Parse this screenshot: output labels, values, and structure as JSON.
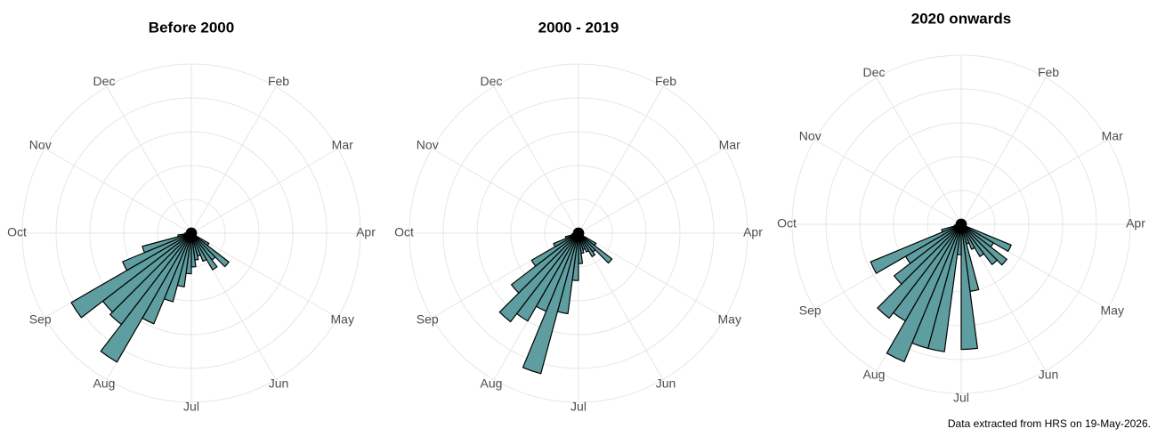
{
  "chart_data": [
    {
      "type": "polar_histogram",
      "title": "Before 2000",
      "color": "#5f9ea0",
      "grid": true,
      "bins": [
        0,
        0.25,
        0.5,
        0.75,
        1,
        1.25,
        1.5,
        1.75,
        2,
        2.25,
        2.5,
        2.75,
        3,
        3.25,
        3.5,
        3.75,
        4,
        4.25,
        4.5,
        4.75,
        5,
        5.25,
        5.5,
        5.75,
        6,
        6.25,
        6.5,
        6.75,
        7,
        7.25,
        7.5,
        7.75,
        8,
        8.25,
        8.5,
        8.75,
        9,
        9.25,
        9.5,
        9.75,
        10,
        10.25,
        10.5,
        10.75,
        11,
        11.25,
        11.5,
        11.75,
        12
      ],
      "values": [
        0.15,
        0.15,
        0.15,
        0.15,
        0.15,
        0.15,
        0.15,
        0.15,
        0.15,
        0.15,
        0.15,
        0.15,
        0.15,
        0.15,
        0.15,
        0.15,
        0.6,
        1.4,
        1.0,
        1.25,
        0.9,
        0.7,
        0.8,
        1.0,
        1.2,
        1.6,
        2.1,
        2.9,
        4.4,
        3.4,
        3.3,
        4.1,
        2.2,
        1.5,
        0.4,
        0.2,
        0.15,
        0.15,
        0.15,
        0.15,
        0.15,
        0.15,
        0.15,
        0.15,
        0.15,
        0.15,
        0.15,
        0.15
      ],
      "xlim": [
        0,
        12
      ],
      "xticks": [
        {
          "value": 1,
          "label": "Feb"
        },
        {
          "value": 2,
          "label": "Mar"
        },
        {
          "value": 3,
          "label": "Apr"
        },
        {
          "value": 4,
          "label": "May"
        },
        {
          "value": 5,
          "label": "Jun"
        },
        {
          "value": 6,
          "label": "Jul"
        },
        {
          "value": 7,
          "label": "Aug"
        },
        {
          "value": 8,
          "label": "Sep"
        },
        {
          "value": 9,
          "label": "Oct"
        },
        {
          "value": 10,
          "label": "Nov"
        },
        {
          "value": 11,
          "label": "Dec"
        }
      ],
      "ylim": [
        0,
        5
      ],
      "yticks": [
        1,
        2,
        3,
        4,
        5
      ]
    },
    {
      "type": "polar_histogram",
      "title": "2000 - 2019",
      "color": "#5f9ea0",
      "grid": true,
      "bins": [
        0,
        0.25,
        0.5,
        0.75,
        1,
        1.25,
        1.5,
        1.75,
        2,
        2.25,
        2.5,
        2.75,
        3,
        3.25,
        3.5,
        3.75,
        4,
        4.25,
        4.5,
        4.75,
        5,
        5.25,
        5.5,
        5.75,
        6,
        6.25,
        6.5,
        6.75,
        7,
        7.25,
        7.5,
        7.75,
        8,
        8.25,
        8.5,
        8.75,
        9,
        9.25,
        9.5,
        9.75,
        10,
        10.25,
        10.5,
        10.75,
        11,
        11.25,
        11.5,
        11.75,
        12
      ],
      "values": [
        0.15,
        0.15,
        0.15,
        0.15,
        0.15,
        0.15,
        0.15,
        0.15,
        0.15,
        0.15,
        0.15,
        0.15,
        0.15,
        0.15,
        0.15,
        0.15,
        0.6,
        1.25,
        0.7,
        0.8,
        0.6,
        0.5,
        0.6,
        0.9,
        1.4,
        2.4,
        4.3,
        2.5,
        3.0,
        3.3,
        2.5,
        1.6,
        0.8,
        0.4,
        0.2,
        0.15,
        0.15,
        0.15,
        0.15,
        0.15,
        0.15,
        0.15,
        0.15,
        0.15,
        0.15,
        0.15,
        0.15,
        0.15
      ],
      "xlim": [
        0,
        12
      ],
      "xticks": [
        {
          "value": 1,
          "label": "Feb"
        },
        {
          "value": 2,
          "label": "Mar"
        },
        {
          "value": 3,
          "label": "Apr"
        },
        {
          "value": 4,
          "label": "May"
        },
        {
          "value": 5,
          "label": "Jun"
        },
        {
          "value": 6,
          "label": "Jul"
        },
        {
          "value": 7,
          "label": "Aug"
        },
        {
          "value": 8,
          "label": "Sep"
        },
        {
          "value": 9,
          "label": "Oct"
        },
        {
          "value": 10,
          "label": "Nov"
        },
        {
          "value": 11,
          "label": "Dec"
        }
      ],
      "ylim": [
        0,
        5
      ],
      "yticks": [
        1,
        2,
        3,
        4,
        5
      ]
    },
    {
      "type": "polar_histogram",
      "title": "2020 onwards",
      "color": "#5f9ea0",
      "grid": true,
      "bins": [
        0,
        0.25,
        0.5,
        0.75,
        1,
        1.25,
        1.5,
        1.75,
        2,
        2.25,
        2.5,
        2.75,
        3,
        3.25,
        3.5,
        3.75,
        4,
        4.25,
        4.5,
        4.75,
        5,
        5.25,
        5.5,
        5.75,
        6,
        6.25,
        6.5,
        6.75,
        7,
        7.25,
        7.5,
        7.75,
        8,
        8.25,
        8.5,
        8.75,
        9,
        9.25,
        9.5,
        9.75,
        10,
        10.25,
        10.5,
        10.75,
        11,
        11.25,
        11.5,
        11.75,
        12
      ],
      "values": [
        0.15,
        0.15,
        0.15,
        0.15,
        0.15,
        0.15,
        0.15,
        0.15,
        0.15,
        0.15,
        0.15,
        0.15,
        0.15,
        0.15,
        0.15,
        1.6,
        1.1,
        1.7,
        1.5,
        1.1,
        0.8,
        0.6,
        2.0,
        3.7,
        0.9,
        3.8,
        3.8,
        4.4,
        3.3,
        3.5,
        2.5,
        1.9,
        2.9,
        0.6,
        0.2,
        0.15,
        0.15,
        0.15,
        0.15,
        0.15,
        0.15,
        0.15,
        0.15,
        0.15,
        0.15,
        0.15,
        0.15,
        0.15
      ],
      "xlim": [
        0,
        12
      ],
      "xticks": [
        {
          "value": 1,
          "label": "Feb"
        },
        {
          "value": 2,
          "label": "Mar"
        },
        {
          "value": 3,
          "label": "Apr"
        },
        {
          "value": 4,
          "label": "May"
        },
        {
          "value": 5,
          "label": "Jun"
        },
        {
          "value": 6,
          "label": "Jul"
        },
        {
          "value": 7,
          "label": "Aug"
        },
        {
          "value": 8,
          "label": "Sep"
        },
        {
          "value": 9,
          "label": "Oct"
        },
        {
          "value": 10,
          "label": "Nov"
        },
        {
          "value": 11,
          "label": "Dec"
        }
      ],
      "ylim": [
        0,
        5
      ],
      "yticks": [
        1,
        2,
        3,
        4,
        5
      ]
    }
  ],
  "footnote": "Data extracted from HRS on 19-May-2026."
}
